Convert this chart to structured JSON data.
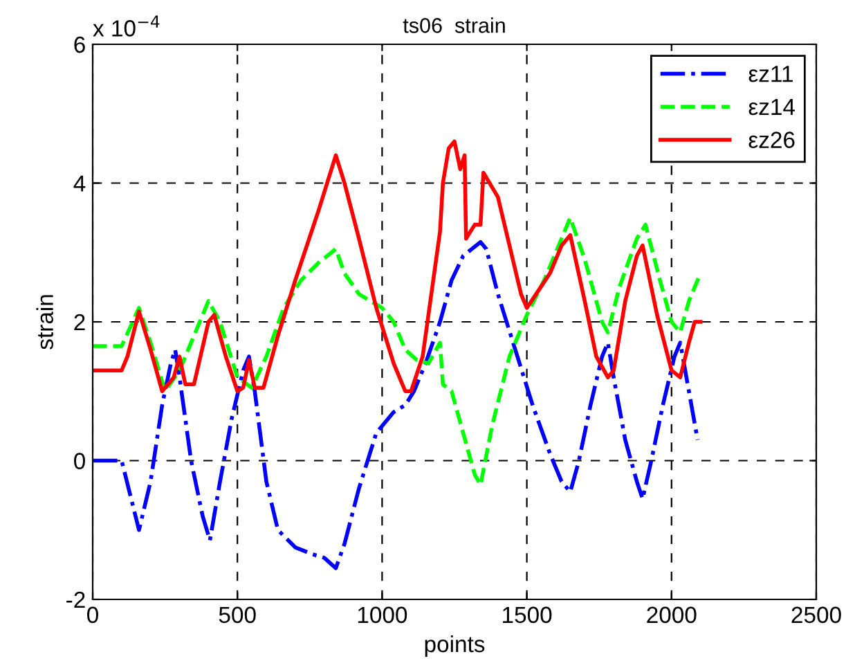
{
  "chart_data": {
    "type": "line",
    "title": "ts06  strain",
    "xlabel": "points",
    "ylabel": "strain",
    "annotations": [
      "x 10$^{−4}$"
    ],
    "xlim": [
      0,
      2500
    ],
    "xticks": [
      0,
      500,
      1000,
      1500,
      2000,
      2500
    ],
    "ylim": [
      -2,
      6
    ],
    "yticks": [
      -2,
      0,
      2,
      4,
      6
    ],
    "grid": true,
    "legend": "top right",
    "series": [
      {
        "name": "εz11",
        "color": "#0000ff",
        "line_style": "dashdot",
        "x": [
          0,
          100,
          130,
          160,
          200,
          240,
          270,
          285,
          300,
          340,
          380,
          405,
          440,
          480,
          520,
          540,
          560,
          600,
          640,
          700,
          760,
          800,
          840,
          870,
          920,
          980,
          1040,
          1080,
          1110,
          1150,
          1200,
          1240,
          1280,
          1340,
          1360,
          1400,
          1460,
          1520,
          1580,
          1620,
          1650,
          1680,
          1720,
          1760,
          1780,
          1800,
          1840,
          1880,
          1900,
          1930,
          1970,
          2010,
          2030,
          2060,
          2090
        ],
        "values": [
          0,
          0,
          -0.5,
          -1.0,
          -0.3,
          0.8,
          1.4,
          1.6,
          1.2,
          0,
          -0.8,
          -1.15,
          -0.3,
          0.6,
          1.3,
          1.5,
          1.0,
          -0.3,
          -1.0,
          -1.25,
          -1.35,
          -1.4,
          -1.55,
          -1.2,
          -0.4,
          0.4,
          0.7,
          0.8,
          1.0,
          1.4,
          2.0,
          2.6,
          2.95,
          3.15,
          3.05,
          2.4,
          1.6,
          0.8,
          0.1,
          -0.3,
          -0.45,
          0,
          0.8,
          1.5,
          1.7,
          1.2,
          0.3,
          -0.3,
          -0.55,
          0,
          0.8,
          1.5,
          1.7,
          1.0,
          0.3
        ]
      },
      {
        "name": "εz14",
        "color": "#00ff00",
        "line_style": "dashed",
        "x": [
          0,
          100,
          160,
          200,
          250,
          300,
          360,
          400,
          440,
          500,
          550,
          600,
          660,
          720,
          780,
          840,
          870,
          920,
          1000,
          1040,
          1080,
          1120,
          1160,
          1200,
          1210,
          1240,
          1280,
          1320,
          1340,
          1380,
          1440,
          1500,
          1560,
          1620,
          1650,
          1700,
          1760,
          1780,
          1820,
          1880,
          1910,
          1960,
          2000,
          2030,
          2060,
          2100
        ],
        "values": [
          1.65,
          1.65,
          2.2,
          1.7,
          1.0,
          1.3,
          1.9,
          2.3,
          2.0,
          1.2,
          1.05,
          1.5,
          2.2,
          2.6,
          2.85,
          3.05,
          2.7,
          2.4,
          2.2,
          2.0,
          1.6,
          1.45,
          1.4,
          1.7,
          1.1,
          1.0,
          0.4,
          -0.2,
          -0.35,
          0.5,
          1.5,
          2.1,
          2.6,
          3.2,
          3.5,
          2.9,
          2.0,
          1.85,
          2.5,
          3.2,
          3.4,
          2.6,
          2.0,
          1.85,
          2.3,
          2.7
        ]
      },
      {
        "name": "εz26",
        "color": "#ff0000",
        "line_style": "solid",
        "x": [
          0,
          100,
          120,
          160,
          200,
          240,
          280,
          300,
          320,
          350,
          400,
          420,
          460,
          500,
          520,
          540,
          560,
          590,
          640,
          700,
          780,
          840,
          870,
          920,
          980,
          1040,
          1080,
          1100,
          1140,
          1180,
          1200,
          1210,
          1230,
          1250,
          1270,
          1285,
          1290,
          1320,
          1340,
          1350,
          1400,
          1440,
          1480,
          1500,
          1540,
          1580,
          1620,
          1650,
          1700,
          1740,
          1780,
          1800,
          1840,
          1880,
          1900,
          1950,
          2000,
          2030,
          2060,
          2080,
          2100
        ],
        "values": [
          1.3,
          1.3,
          1.5,
          2.15,
          1.6,
          1.0,
          1.2,
          1.5,
          1.1,
          1.1,
          2.0,
          2.1,
          1.5,
          1.0,
          1.05,
          1.45,
          1.05,
          1.05,
          1.8,
          2.6,
          3.6,
          4.4,
          4.0,
          3.2,
          2.2,
          1.4,
          1.0,
          1.0,
          1.5,
          2.7,
          3.3,
          4.0,
          4.5,
          4.6,
          4.2,
          4.4,
          3.2,
          3.4,
          3.4,
          4.15,
          3.8,
          3.1,
          2.4,
          2.2,
          2.45,
          2.7,
          3.1,
          3.25,
          2.3,
          1.5,
          1.2,
          1.3,
          2.3,
          2.95,
          3.1,
          2.1,
          1.3,
          1.2,
          1.7,
          2.0,
          2.0
        ]
      }
    ]
  }
}
